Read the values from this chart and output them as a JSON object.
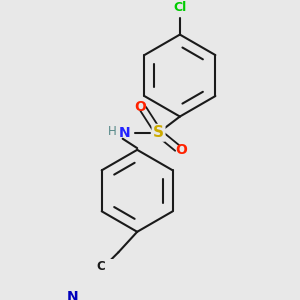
{
  "background_color": "#e8e8e8",
  "bond_color": "#1a1a1a",
  "atom_colors": {
    "Cl": "#00cc00",
    "O": "#ff2200",
    "S": "#ccaa00",
    "N": "#2222ff",
    "H": "#558888",
    "C": "#1a1a1a",
    "N_nitrile": "#0000bb"
  },
  "figsize": [
    3.0,
    3.0
  ],
  "dpi": 100
}
